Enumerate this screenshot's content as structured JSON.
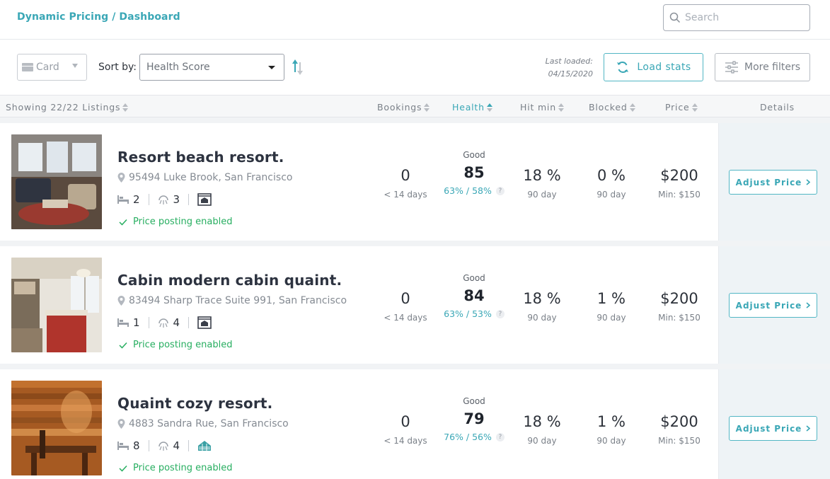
{
  "header": {
    "breadcrumb": "Dynamic Pricing / Dashboard",
    "search_placeholder": "Search"
  },
  "toolbar": {
    "view_value": "Card",
    "sort_label": "Sort by:",
    "sort_value": "Health Score",
    "last_loaded_label": "Last loaded:",
    "last_loaded_date": "04/15/2020",
    "load_stats_label": "Load stats",
    "more_filters_label": "More filters"
  },
  "columns": {
    "showing": "Showing 22/22 Listings",
    "bookings": "Bookings",
    "health": "Health",
    "hit_min": "Hit min",
    "blocked": "Blocked",
    "price": "Price",
    "details": "Details"
  },
  "listings": [
    {
      "title": "Resort beach resort.",
      "address": "95494 Luke Brook, San Francisco",
      "beds": "2",
      "baths": "3",
      "property_icon": "house-icon",
      "posting": "Price posting enabled",
      "bookings": "0",
      "bookings_sub": "< 14 days",
      "health_label": "Good",
      "health": "85",
      "health_sub": "63% / 58%",
      "hit_min": "18 %",
      "hit_min_sub": "90 day",
      "blocked": "0 %",
      "blocked_sub": "90 day",
      "price": "$200",
      "price_sub": "Min: $150",
      "adjust_label": "Adjust Price"
    },
    {
      "title": "Cabin modern cabin quaint.",
      "address": "83494 Sharp Trace Suite 991, San Francisco",
      "beds": "1",
      "baths": "4",
      "property_icon": "house-icon",
      "posting": "Price posting enabled",
      "bookings": "0",
      "bookings_sub": "< 14 days",
      "health_label": "Good",
      "health": "84",
      "health_sub": "63% / 53%",
      "hit_min": "18 %",
      "hit_min_sub": "90 day",
      "blocked": "1 %",
      "blocked_sub": "90 day",
      "price": "$200",
      "price_sub": "Min: $150",
      "adjust_label": "Adjust Price"
    },
    {
      "title": "Quaint cozy resort.",
      "address": "4883 Sandra Rue, San Francisco",
      "beds": "8",
      "baths": "4",
      "property_icon": "cabin-icon",
      "posting": "Price posting enabled",
      "bookings": "0",
      "bookings_sub": "< 14 days",
      "health_label": "Good",
      "health": "79",
      "health_sub": "76% / 56%",
      "hit_min": "18 %",
      "hit_min_sub": "90 day",
      "blocked": "1 %",
      "blocked_sub": "90 day",
      "price": "$200",
      "price_sub": "Min: $150",
      "adjust_label": "Adjust Price"
    }
  ],
  "colors": {
    "accent": "#3aa7b6",
    "success": "#27ae60",
    "text": "#2d323a"
  }
}
